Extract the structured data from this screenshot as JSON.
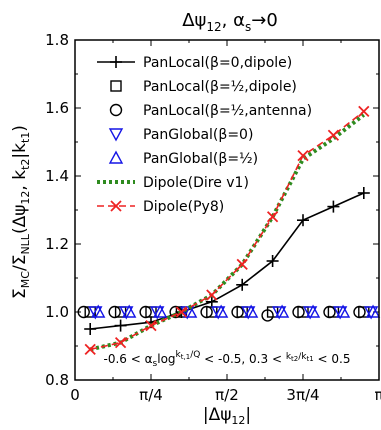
{
  "chart_data": {
    "type": "line",
    "title": "Δψ₁₂, αₛ→0",
    "xlabel": "|Δψ₁₂|",
    "ylabel": "Σ_MC/Σ_NLL(Δψ₁₂, k_t2|k_t1)",
    "xlim": [
      0,
      3.14159
    ],
    "ylim": [
      0.8,
      1.8
    ],
    "grid": false,
    "legend_position": "top-left",
    "x_ticks": [
      {
        "value": 0,
        "label": "0"
      },
      {
        "value": 0.7854,
        "label": "π/4"
      },
      {
        "value": 1.5708,
        "label": "π/2"
      },
      {
        "value": 2.3562,
        "label": "3π/4"
      },
      {
        "value": 3.14159,
        "label": "π"
      }
    ],
    "y_ticks": [
      {
        "value": 0.8,
        "label": "0.8"
      },
      {
        "value": 1.0,
        "label": "1.0"
      },
      {
        "value": 1.2,
        "label": "1.2"
      },
      {
        "value": 1.4,
        "label": "1.4"
      },
      {
        "value": 1.6,
        "label": "1.6"
      },
      {
        "value": 1.8,
        "label": "1.8"
      }
    ],
    "annotation": "-0.6 < αₛlog(k_t,1/Q) < -0.5, 0.3 < k_t2/k_t1 < 0.5",
    "series": [
      {
        "name": "PanLocal(β=0,dipole)",
        "marker": "plus",
        "line": "solid",
        "color": "#000000",
        "x": [
          0.1571,
          0.4712,
          0.7854,
          1.0996,
          1.4137,
          1.7279,
          2.042,
          2.3562,
          2.6704,
          2.9845
        ],
        "y": [
          0.95,
          0.96,
          0.97,
          1.0,
          1.03,
          1.08,
          1.15,
          1.27,
          1.31,
          1.35
        ]
      },
      {
        "name": "PanLocal(β=½,dipole)",
        "marker": "square",
        "line": "none",
        "color": "#000000",
        "x": [
          0.1571,
          0.4712,
          0.7854,
          1.0996,
          1.4137,
          1.7279,
          2.042,
          2.3562,
          2.6704,
          2.9845
        ],
        "y": [
          1.0,
          1.0,
          1.0,
          1.0,
          1.0,
          1.0,
          1.0,
          1.0,
          1.0,
          1.0
        ]
      },
      {
        "name": "PanLocal(β=½,antenna)",
        "marker": "circle",
        "line": "none",
        "color": "#000000",
        "x": [
          0.09,
          0.41,
          0.73,
          1.04,
          1.36,
          1.68,
          1.99,
          2.31,
          2.63,
          2.94
        ],
        "y": [
          1.0,
          1.0,
          1.0,
          1.0,
          1.0,
          1.0,
          0.99,
          1.0,
          1.0,
          1.0
        ]
      },
      {
        "name": "PanGlobal(β=0)",
        "marker": "triangle-down",
        "line": "none",
        "color": "#1515e6",
        "x": [
          0.21,
          0.53,
          0.85,
          1.16,
          1.48,
          1.79,
          2.11,
          2.43,
          2.74,
          3.06
        ],
        "y": [
          1.0,
          1.0,
          1.0,
          1.0,
          1.0,
          1.0,
          1.0,
          1.0,
          1.0,
          1.0
        ]
      },
      {
        "name": "PanGlobal(β=½)",
        "marker": "triangle-up",
        "line": "none",
        "color": "#1515e6",
        "x": [
          0.24,
          0.56,
          0.88,
          1.19,
          1.51,
          1.82,
          2.14,
          2.46,
          2.77,
          3.08
        ],
        "y": [
          1.0,
          1.0,
          1.0,
          1.0,
          1.0,
          1.0,
          1.0,
          1.0,
          1.0,
          1.0
        ]
      },
      {
        "name": "Dipole(Dire v1)",
        "marker": "none",
        "line": "dotted",
        "color": "#2e8b1f",
        "x": [
          0.1571,
          0.4712,
          0.7854,
          1.0996,
          1.4137,
          1.7279,
          2.042,
          2.3562,
          2.6704,
          2.9845
        ],
        "y": [
          0.89,
          0.91,
          0.96,
          1.0,
          1.05,
          1.14,
          1.28,
          1.45,
          1.51,
          1.58
        ]
      },
      {
        "name": "Dipole(Py8)",
        "marker": "x",
        "line": "dashed",
        "color": "#ee2222",
        "x": [
          0.1571,
          0.4712,
          0.7854,
          1.0996,
          1.4137,
          1.7279,
          2.042,
          2.3562,
          2.6704,
          2.9845
        ],
        "y": [
          0.89,
          0.91,
          0.96,
          1.0,
          1.05,
          1.14,
          1.28,
          1.46,
          1.52,
          1.59
        ]
      }
    ]
  }
}
